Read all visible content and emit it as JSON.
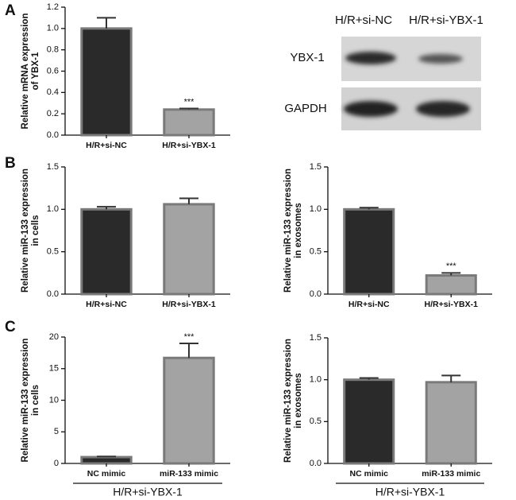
{
  "panels": [
    "A",
    "B",
    "C"
  ],
  "blot": {
    "lanes": [
      "H/R+si-NC",
      "H/R+si-YBX-1"
    ],
    "proteins": [
      "YBX-1",
      "GAPDH"
    ]
  },
  "chart_data": [
    {
      "type": "bar",
      "ylabel": [
        "Relative mRNA  expression",
        "of YBX-1"
      ],
      "categories": [
        "H/R+si-NC",
        "H/R+si-YBX-1"
      ],
      "values": [
        1.0,
        0.24
      ],
      "errors": [
        0.1,
        0.01
      ],
      "colors": [
        "#2a2a2a",
        "#a3a3a3"
      ],
      "ylim": [
        0,
        1.2
      ],
      "yticks": [
        {
          "value": 0,
          "label": "0.0"
        },
        {
          "value": 0.2,
          "label": "0.2"
        },
        {
          "value": 0.4,
          "label": "0.4"
        },
        {
          "value": 0.6,
          "label": "0.6"
        },
        {
          "value": 0.8,
          "label": "0.8"
        },
        {
          "value": 1.0,
          "label": "1.0"
        },
        {
          "value": 1.2,
          "label": "1.2"
        }
      ],
      "annotations": [
        {
          "category": "H/R+si-YBX-1",
          "text": "***"
        }
      ]
    },
    {
      "type": "bar",
      "ylabel": [
        "Relative miR-133  expression",
        "in cells"
      ],
      "categories": [
        "H/R+si-NC",
        "H/R+si-YBX-1"
      ],
      "values": [
        1.0,
        1.06
      ],
      "errors": [
        0.03,
        0.07
      ],
      "colors": [
        "#2a2a2a",
        "#a3a3a3"
      ],
      "ylim": [
        0,
        1.5
      ],
      "yticks": [
        {
          "value": 0,
          "label": "0.0"
        },
        {
          "value": 0.5,
          "label": "0.5"
        },
        {
          "value": 1.0,
          "label": "1.0"
        },
        {
          "value": 1.5,
          "label": "1.5"
        }
      ]
    },
    {
      "type": "bar",
      "ylabel": [
        "Relative miR-133  expression",
        "in exosomes"
      ],
      "categories": [
        "H/R+si-NC",
        "H/R+si-YBX-1"
      ],
      "values": [
        1.0,
        0.22
      ],
      "errors": [
        0.02,
        0.03
      ],
      "colors": [
        "#2a2a2a",
        "#a3a3a3"
      ],
      "ylim": [
        0,
        1.5
      ],
      "yticks": [
        {
          "value": 0,
          "label": "0.0"
        },
        {
          "value": 0.5,
          "label": "0.5"
        },
        {
          "value": 1.0,
          "label": "1.0"
        },
        {
          "value": 1.5,
          "label": "1.5"
        }
      ],
      "annotations": [
        {
          "category": "H/R+si-YBX-1",
          "text": "***"
        }
      ]
    },
    {
      "type": "bar",
      "ylabel": [
        "Relative miR-133  expression",
        "in cells"
      ],
      "categories": [
        "NC mimic",
        "miR-133 mimic"
      ],
      "values": [
        1.0,
        16.7
      ],
      "errors": [
        0.1,
        2.3
      ],
      "colors": [
        "#2a2a2a",
        "#a3a3a3"
      ],
      "ylim": [
        0,
        20
      ],
      "yticks": [
        0,
        5,
        10,
        15,
        20
      ],
      "annotations": [
        {
          "category": "miR-133 mimic",
          "text": "***"
        }
      ],
      "group_label": "H/R+si-YBX-1"
    },
    {
      "type": "bar",
      "ylabel": [
        "Relative miR-133  expression",
        "in exosomes"
      ],
      "categories": [
        "NC mimic",
        "miR-133 mimic"
      ],
      "values": [
        1.0,
        0.97
      ],
      "errors": [
        0.02,
        0.08
      ],
      "colors": [
        "#2a2a2a",
        "#a3a3a3"
      ],
      "ylim": [
        0,
        1.5
      ],
      "yticks": [
        {
          "value": 0,
          "label": "0.0"
        },
        {
          "value": 0.5,
          "label": "0.5"
        },
        {
          "value": 1.0,
          "label": "1.0"
        },
        {
          "value": 1.5,
          "label": "1.5"
        }
      ],
      "group_label": "H/R+si-YBX-1"
    }
  ]
}
